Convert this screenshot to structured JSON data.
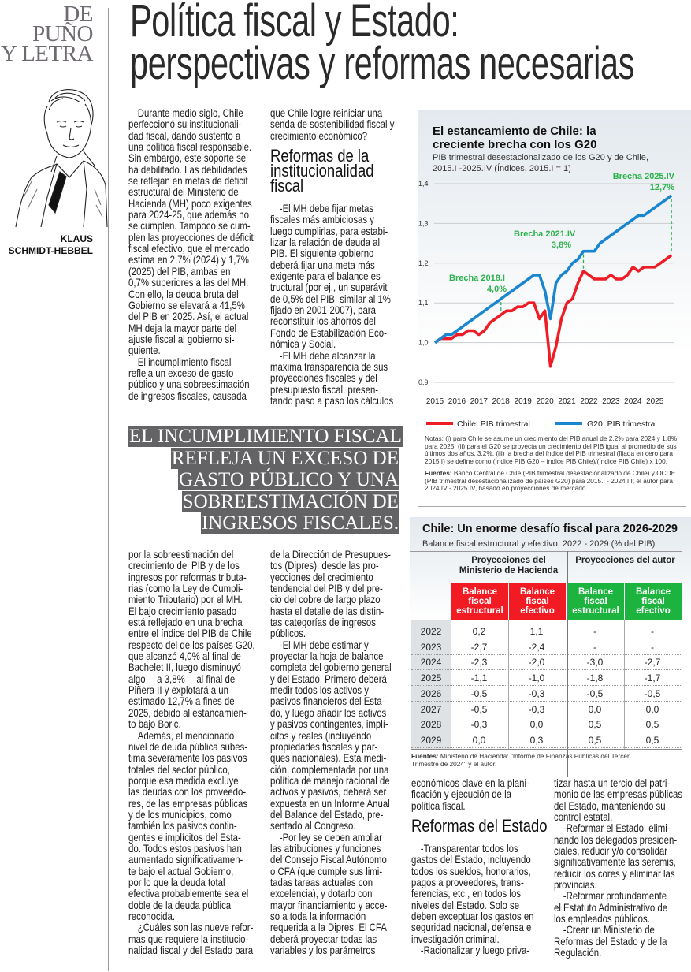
{
  "rail": {
    "section_lines": [
      "DE",
      "PUÑO",
      "Y LETRA"
    ],
    "author_lines": [
      "KLAUS",
      "SCHMIDT-HEBBEL"
    ]
  },
  "headline": {
    "lines": [
      "Política fiscal y Estado:",
      "perspectivas y reformas necesarias"
    ]
  },
  "pull_quote": {
    "lines": [
      "EL INCUMPLIMIENTO FISCAL",
      "REFLEJA UN EXCESO DE",
      "GASTO PÚBLICO Y UNA",
      "SOBREESTIMACIÓN DE",
      "INGRESOS FISCALES."
    ]
  },
  "columns": {
    "c1t": [
      {
        "type": "p",
        "lines": [
          "Durante medio siglo, Chile",
          "perfeccionó su institucionali-",
          "dad fiscal, dando sustento a",
          "una política fiscal responsable.",
          "Sin embargo, este soporte se",
          "ha debilitado. Las debilidades",
          "se reflejan en metas de déficit",
          "estructural del Ministerio de",
          "Hacienda (MH) poco exigentes",
          "para 2024-25, que además no",
          "se cumplen. Tampoco se cum-",
          "plen las proyecciones de déficit",
          "fiscal efectivo, que el mercado",
          "estima en 2,7% (2024) y 1,7%",
          "(2025) del PIB, ambas en",
          "0,7% superiores a las del MH.",
          "Con ello, la deuda bruta del",
          "Gobierno se elevará a 41,5%",
          "del PIB en 2025. Así, el actual",
          "MH deja la mayor parte del",
          "ajuste fiscal al gobierno si-",
          "guiente."
        ]
      },
      {
        "type": "p",
        "lines": [
          "El incumplimiento fiscal",
          "refleja un exceso de gasto",
          "público y una sobreestimación",
          "de ingresos fiscales, causada"
        ]
      }
    ],
    "c2t": [
      {
        "type": "p",
        "cont": true,
        "lines": [
          "que Chile logre reiniciar una",
          "senda de sostenibilidad fiscal y",
          "crecimiento económico?"
        ]
      },
      {
        "type": "h",
        "lines": [
          "Reformas de la",
          "institucionalidad",
          "fiscal"
        ]
      },
      {
        "type": "p",
        "lines": [
          "-El MH debe fijar metas",
          "fiscales más ambiciosas y",
          "luego cumplirlas, para estabi-",
          "lizar la relación de deuda al",
          "PIB. El siguiente gobierno",
          "deberá fijar una meta más",
          "exigente para el balance es-",
          "tructural (por ej., un superávit",
          "de 0,5% del PIB, similar al 1%",
          "fijado en 2001-2007), para",
          "reconstituir los ahorros del",
          "Fondo de Estabilización Eco-",
          "nómica y Social."
        ]
      },
      {
        "type": "p",
        "lines": [
          "-El MH debe alcanzar la",
          "máxima transparencia de sus",
          "proyecciones fiscales y del",
          "presupuesto fiscal, presen-",
          "tando paso a paso los cálculos"
        ]
      }
    ],
    "c1b": [
      {
        "type": "p",
        "cont": true,
        "lines": [
          "por la sobreestimación del",
          "crecimiento del PIB y de los",
          "ingresos por reformas tributa-",
          "rias (como la Ley de Cumpli-",
          "miento Tributario) por el MH.",
          "El bajo crecimiento pasado",
          "está reflejado en una brecha",
          "entre el índice del PIB de Chile",
          "respecto del de los países G20,",
          "que alcanzó 4,0% al final de",
          "Bachelet II, luego disminuyó",
          "algo —a 3,8%— al final de",
          "Piñera II y explotará a un",
          "estimado 12,7% a fines de",
          "2025, debido al estancamien-",
          "to bajo Boric."
        ]
      },
      {
        "type": "p",
        "lines": [
          "Además, el mencionado",
          "nivel de deuda pública subes-",
          "tima severamente los pasivos",
          "totales del sector público,",
          "porque esa medida excluye",
          "las deudas con los proveedo-",
          "res, de las empresas públicas",
          "y de los municipios, como",
          "también los pasivos contin-",
          "gentes e implícitos del Esta-",
          "do. Todos estos pasivos han",
          "aumentado significativamen-",
          "te bajo el actual Gobierno,",
          "por lo que la deuda total",
          "efectiva probablemente sea el",
          "doble de la deuda pública",
          "reconocida."
        ]
      },
      {
        "type": "p",
        "lines": [
          "¿Cuáles son las nueve refor-",
          "mas que requiere la institucio-",
          "nalidad fiscal y del Estado para"
        ]
      }
    ],
    "c2b": [
      {
        "type": "p",
        "cont": true,
        "lines": [
          "de la Dirección de Presupues-",
          "tos (Dipres), desde las pro-",
          "yecciones del crecimiento",
          "tendencial del PIB y del pre-",
          "cio del cobre de largo plazo",
          "hasta el detalle de las distin-",
          "tas categorías de ingresos",
          "públicos."
        ]
      },
      {
        "type": "p",
        "lines": [
          "-El MH debe estimar y",
          "proyectar la hoja de balance",
          "completa del gobierno general",
          "y del Estado. Primero deberá",
          "medir todos los activos y",
          "pasivos financieros del Esta-",
          "do, y luego añadir los activos",
          "y pasivos contingentes, implí-",
          "citos y reales (incluyendo",
          "propiedades fiscales y par-",
          "ques nacionales). Esta medi-",
          "ción, complementada por una",
          "política de manejo racional de",
          "activos y pasivos, deberá ser",
          "expuesta en un Informe Anual",
          "del Balance del Estado, pre-",
          "sentado al Congreso."
        ]
      },
      {
        "type": "p",
        "lines": [
          "-Por ley se deben ampliar",
          "las atribuciones y funciones",
          "del Consejo Fiscal Autónomo",
          "o CFA (que cumple sus limi-",
          "tadas tareas actuales con",
          "excelencia), y dotarlo con",
          "mayor financiamiento y acce-",
          "so a toda la información",
          "requerida a la Dipres. El CFA",
          "deberá proyectar todas las",
          "variables y los parámetros"
        ]
      }
    ],
    "c3": [
      {
        "type": "p",
        "cont": true,
        "lines": [
          "económicos clave en la plani-",
          "ficación y ejecución de la",
          "política fiscal."
        ]
      },
      {
        "type": "h",
        "lines": [
          "Reformas del Estado"
        ]
      },
      {
        "type": "p",
        "lines": [
          "-Transparentar todos los",
          "gastos del Estado, incluyendo",
          "todos los sueldos, honorarios,",
          "pagos a proveedores, trans-",
          "ferencias, etc., en todos los",
          "niveles del Estado. Solo se",
          "deben exceptuar los gastos en",
          "seguridad nacional, defensa e",
          "investigación criminal."
        ]
      },
      {
        "type": "p",
        "lines": [
          "-Racionalizar y luego priva-"
        ]
      }
    ],
    "c4": [
      {
        "type": "p",
        "cont": true,
        "lines": [
          "tizar hasta un tercio del patri-",
          "monio de las empresas públicas",
          "del Estado, manteniendo su",
          "control estatal."
        ]
      },
      {
        "type": "p",
        "lines": [
          "-Reformar el Estado, elimi-",
          "nando los delegados presiden-",
          "ciales, reducir y/o consolidar",
          "significativamente las seremis,",
          "reducir los cores y eliminar las",
          "provincias."
        ]
      },
      {
        "type": "p",
        "lines": [
          "-Reformar profundamente",
          "el Estatuto Administrativo de",
          "los empleados públicos."
        ]
      },
      {
        "type": "p",
        "lines": [
          "-Crear un Ministerio de",
          "Reformas del Estado y de la",
          "Regulación."
        ]
      }
    ]
  },
  "chart_data": {
    "type": "line",
    "title": "El estancamiento de Chile: la creciente brecha con los G20",
    "title_lines": [
      "El estancamiento de Chile: la",
      "creciente brecha con los G20"
    ],
    "subtitle_lines": [
      "PIB trimestral desestacionalizado de los G20 y de Chile,",
      "2015.I -2025.IV (Índices, 2015.I = 1)"
    ],
    "x_start": "2015.I",
    "x_end": "2025.IV",
    "x_unit": "quarter",
    "x_tick_labels": [
      "2015",
      "2016",
      "2017",
      "2018",
      "2019",
      "2020",
      "2021",
      "2022",
      "2023",
      "2024",
      "2025"
    ],
    "y_tick_labels": [
      "1,4",
      "1,3",
      "1,2",
      "1,1",
      "1,0",
      "0,9"
    ],
    "y_ticks": [
      1.4,
      1.3,
      1.2,
      1.1,
      1.0,
      0.9
    ],
    "ylim": [
      0.9,
      1.4
    ],
    "grid": true,
    "series": [
      {
        "name": "Chile: PIB trimestral",
        "color": "#ee1c25",
        "values": [
          1.0,
          1.01,
          1.01,
          1.01,
          1.02,
          1.02,
          1.03,
          1.03,
          1.02,
          1.03,
          1.05,
          1.06,
          1.07,
          1.08,
          1.08,
          1.09,
          1.09,
          1.1,
          1.1,
          1.06,
          1.08,
          0.94,
          0.99,
          1.06,
          1.1,
          1.11,
          1.15,
          1.18,
          1.17,
          1.16,
          1.16,
          1.16,
          1.17,
          1.16,
          1.16,
          1.17,
          1.19,
          1.18,
          1.19,
          1.19,
          1.19,
          1.2,
          1.21,
          1.22
        ]
      },
      {
        "name": "G20: PIB trimestral",
        "color": "#1a86d0",
        "values": [
          1.0,
          1.01,
          1.02,
          1.02,
          1.03,
          1.04,
          1.05,
          1.06,
          1.07,
          1.08,
          1.09,
          1.1,
          1.11,
          1.12,
          1.13,
          1.14,
          1.15,
          1.16,
          1.17,
          1.17,
          1.13,
          1.06,
          1.15,
          1.17,
          1.18,
          1.2,
          1.21,
          1.23,
          1.23,
          1.23,
          1.25,
          1.26,
          1.27,
          1.28,
          1.29,
          1.3,
          1.31,
          1.32,
          1.32,
          1.33,
          1.34,
          1.35,
          1.36,
          1.37
        ]
      }
    ],
    "annotations": [
      {
        "label": "Brecha 2018.I",
        "value": "4,0%",
        "quarter_index": 12
      },
      {
        "label": "Brecha 2021.IV",
        "value": "3,8%",
        "quarter_index": 27
      },
      {
        "label": "Brecha 2025.IV",
        "value": "12,7%",
        "quarter_index": 43
      }
    ],
    "annotation_color": "#2bb24c",
    "legend_position": "bottom",
    "notes": "Notas: (i) para Chile se asume un crecimiento del PIB anual de 2,2% para 2024 y 1,8% para 2025, (ii) para el G20 se proyecta un crecimiento del PIB igual al promedio de sus últimos dos años, 3,2%, (iii) la brecha del índice del PIB trimestral (fijada en cero para 2015.I) se define como (Índice PIB G20 – índice PIB Chile)/(Índice PIB Chile) x 100.",
    "sources_label": "Fuentes:",
    "sources": " Banco Central de Chile (PIB trimestral desestacionalizado de Chile) y OCDE (PIB trimestral desestacionalizado de países G20) para 2015.I - 2024.III; el autor para 2024.IV - 2025.IV, basado en proyecciones de mercado."
  },
  "table": {
    "title": "Chile: Un enorme desafío fiscal para 2026-2029",
    "subtitle": "Balance fiscal estructural y efectivo, 2022 - 2029 (% del PIB)",
    "groups": [
      {
        "lines": [
          "Proyecciones del",
          "Ministerio de Hacienda"
        ],
        "color": "#f21a23"
      },
      {
        "lines": [
          "Proyecciones del autor"
        ],
        "color": "#1db33f"
      }
    ],
    "columns": [
      {
        "lines": [
          "Balance",
          "fiscal",
          "estructural"
        ]
      },
      {
        "lines": [
          "Balance",
          "fiscal",
          "efectivo"
        ]
      },
      {
        "lines": [
          "Balance",
          "fiscal",
          "estructural"
        ]
      },
      {
        "lines": [
          "Balance",
          "fiscal",
          "efectivo"
        ]
      }
    ],
    "rows": [
      {
        "year": "2022",
        "values": [
          "0,2",
          "1,1",
          "-",
          "-"
        ]
      },
      {
        "year": "2023",
        "values": [
          "-2,7",
          "-2,4",
          "-",
          "-"
        ]
      },
      {
        "year": "2024",
        "values": [
          "-2,3",
          "-2,0",
          "-3,0",
          "-2,7"
        ]
      },
      {
        "year": "2025",
        "values": [
          "-1,1",
          "-1,0",
          "-1,8",
          "-1,7"
        ]
      },
      {
        "year": "2026",
        "values": [
          "-0,5",
          "-0,3",
          "-0,5",
          "-0,5"
        ]
      },
      {
        "year": "2027",
        "values": [
          "-0,5",
          "-0,3",
          "0,0",
          "0,0"
        ]
      },
      {
        "year": "2028",
        "values": [
          "-0,3",
          "0,0",
          "0,5",
          "0,5"
        ]
      },
      {
        "year": "2029",
        "values": [
          "0,0",
          "0,3",
          "0,5",
          "0,5"
        ]
      }
    ],
    "sources_label": "Fuentes:",
    "sources": " Ministerio de Hacienda: \"Informe de Finanzas Públicas del Tercer Trimestre de 2024\" y el autor."
  }
}
